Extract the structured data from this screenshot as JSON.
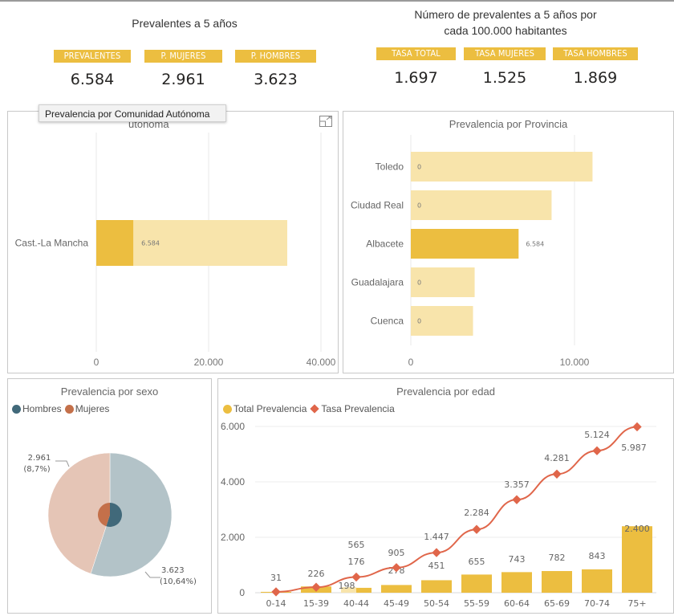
{
  "kpi_left": {
    "title": "Prevalentes a 5 años",
    "cards": [
      {
        "label": "PREVALENTES",
        "value": "6.584"
      },
      {
        "label": "P. MUJERES",
        "value": "2.961"
      },
      {
        "label": "P. HOMBRES",
        "value": "3.623"
      }
    ]
  },
  "kpi_right": {
    "title_line1": "Número de prevalentes a 5 años por",
    "title_line2": "cada 100.000 habitantes",
    "cards": [
      {
        "label": "TASA TOTAL",
        "value": "1.697"
      },
      {
        "label": "TASA MUJERES",
        "value": "1.525"
      },
      {
        "label": "TASA HOMBRES",
        "value": "1.869"
      }
    ]
  },
  "tooltip": {
    "text": "Prevalencia por Comunidad Autónoma"
  },
  "focus_icon": "focus-mode-icon",
  "colors": {
    "accent": "#ecbe40",
    "accent_light": "#f8e4ab",
    "hombres": "#41697a",
    "hombres_light": "#b3c3c8",
    "mujeres": "#c4704a",
    "mujeres_light": "#e5c5b6",
    "line": "#e0664a"
  },
  "chart_data": [
    {
      "id": "ccaa",
      "type": "bar",
      "orientation": "horizontal",
      "title": "Prevalencia por Comunidad Autónoma",
      "title_visible_fragment": "utónoma",
      "categories": [
        "Cast.-La Mancha"
      ],
      "series": [
        {
          "name": "Total (background)",
          "values": [
            34000
          ]
        },
        {
          "name": "Prevalencia (highlighted)",
          "values": [
            6584
          ]
        }
      ],
      "data_labels": [
        "6.584"
      ],
      "x_ticks": [
        "0",
        "20.000",
        "40.000"
      ],
      "x_tick_values": [
        0,
        20000,
        40000
      ],
      "xlim": [
        0,
        40000
      ],
      "grid": true
    },
    {
      "id": "provincia",
      "type": "bar",
      "orientation": "horizontal",
      "title": "Prevalencia por Provincia",
      "categories": [
        "Toledo",
        "Ciudad Real",
        "Albacete",
        "Guadalajara",
        "Cuenca"
      ],
      "series": [
        {
          "name": "Total (background)",
          "values": [
            11100,
            8600,
            6584,
            3900,
            3800
          ]
        },
        {
          "name": "Prevalencia (highlighted)",
          "values": [
            0,
            0,
            6584,
            0,
            0
          ]
        }
      ],
      "data_labels": [
        "0",
        "0",
        "6.584",
        "0",
        "0"
      ],
      "x_ticks": [
        "0",
        "10.000"
      ],
      "x_tick_values": [
        0,
        10000
      ],
      "xlim": [
        0,
        15000
      ],
      "grid": true
    },
    {
      "id": "sexo",
      "type": "pie",
      "title": "Prevalencia por sexo",
      "legend": [
        "Hombres",
        "Mujeres"
      ],
      "legend_position": "top-left",
      "slices": [
        {
          "name": "Hombres",
          "value": 3623,
          "label": "3.623",
          "pct_label": "(10,64%)"
        },
        {
          "name": "Mujeres",
          "value": 2961,
          "label": "2.961",
          "pct_label": "(8,7%)"
        }
      ],
      "inner_highlight": true
    },
    {
      "id": "edad",
      "type": "bar",
      "combo": "bar+line",
      "title": "Prevalencia por edad",
      "legend": [
        "Total Prevalencia",
        "Tasa Prevalencia"
      ],
      "legend_position": "top-left",
      "categories": [
        "0-14",
        "15-39",
        "40-44",
        "45-49",
        "50-54",
        "55-59",
        "60-64",
        "65-69",
        "70-74",
        "75+"
      ],
      "series": [
        {
          "name": "Total Prevalencia",
          "type": "bar",
          "values": [
            31,
            226,
            176,
            278,
            451,
            655,
            743,
            782,
            843,
            2400
          ],
          "labels": [
            "31",
            "226",
            "176",
            "278",
            "451",
            "655",
            "743",
            "782",
            "843",
            "2.400"
          ],
          "faded_extra": {
            "category": "40-44",
            "value": 198,
            "label": "198"
          }
        },
        {
          "name": "Tasa Prevalencia",
          "type": "line",
          "values": [
            31,
            198,
            565,
            905,
            1447,
            2284,
            3357,
            4281,
            5124,
            5987
          ],
          "labels": [
            "",
            "",
            "565",
            "905",
            "1.447",
            "2.284",
            "3.357",
            "4.281",
            "5.124",
            "5.987"
          ]
        }
      ],
      "y_ticks": [
        "0",
        "2.000",
        "4.000",
        "6.000"
      ],
      "y_tick_values": [
        0,
        2000,
        4000,
        6000
      ],
      "ylim": [
        0,
        6000
      ],
      "grid": true
    }
  ]
}
